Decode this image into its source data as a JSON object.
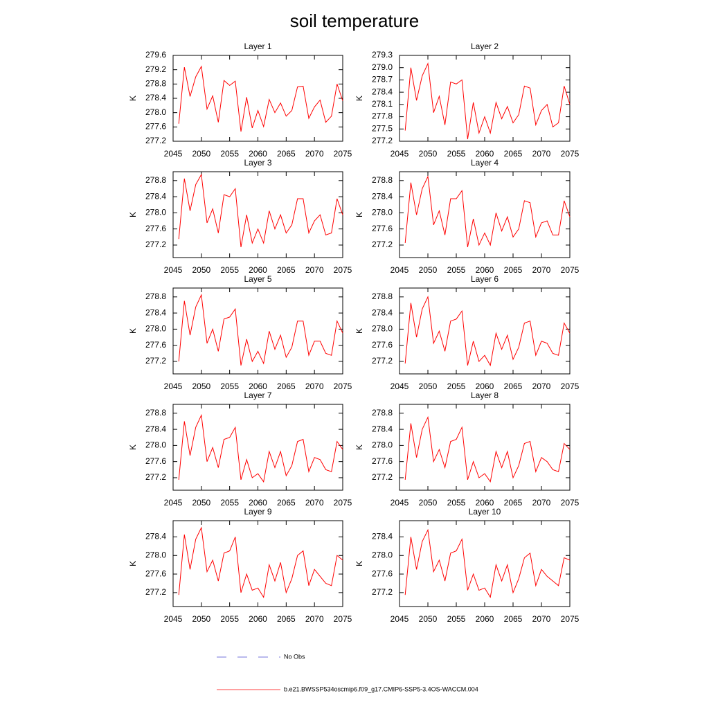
{
  "title": "soil temperature",
  "legend": [
    {
      "name": "No Obs",
      "color": "#4a4ad0",
      "style": "dashed"
    },
    {
      "name": "b.e21.BWSSP534oscmip6.f09_g17.CMIP6-SSP5-3.4OS-WACCM.004",
      "color": "#ff0000",
      "style": "solid"
    }
  ],
  "chart_data": [
    {
      "type": "line",
      "title": "Layer 1",
      "ylabel": "K",
      "x": [
        2046,
        2047,
        2048,
        2049,
        2050,
        2051,
        2052,
        2053,
        2054,
        2055,
        2056,
        2057,
        2058,
        2059,
        2060,
        2061,
        2062,
        2063,
        2064,
        2065,
        2066,
        2067,
        2068,
        2069,
        2070,
        2071,
        2072,
        2073,
        2074,
        2075
      ],
      "series": [
        {
          "color": "#ff0000",
          "values": [
            277.69,
            279.27,
            278.45,
            279.0,
            279.29,
            278.1,
            278.47,
            277.73,
            278.9,
            278.76,
            278.88,
            277.47,
            278.43,
            277.57,
            278.06,
            277.61,
            278.37,
            278.0,
            278.27,
            277.9,
            278.06,
            278.72,
            278.74,
            277.84,
            278.16,
            278.35,
            277.73,
            277.9,
            278.8,
            278.33
          ]
        }
      ],
      "xlim": [
        2045,
        2075
      ],
      "xticks": [
        2045,
        2050,
        2055,
        2060,
        2065,
        2070,
        2075
      ],
      "ylim": [
        277.2,
        279.6
      ],
      "yticks": [
        277.2,
        277.6,
        {
          "value": 278,
          "label": "278.0"
        },
        278.4,
        278.8,
        279.2,
        279.6
      ]
    },
    {
      "type": "line",
      "title": "Layer 2",
      "ylabel": "K",
      "x": [
        2046,
        2047,
        2048,
        2049,
        2050,
        2051,
        2052,
        2053,
        2054,
        2055,
        2056,
        2057,
        2058,
        2059,
        2060,
        2061,
        2062,
        2063,
        2064,
        2065,
        2066,
        2067,
        2068,
        2069,
        2070,
        2071,
        2072,
        2073,
        2074,
        2075
      ],
      "series": [
        {
          "color": "#ff0000",
          "values": [
            277.46,
            279.0,
            278.2,
            278.8,
            279.1,
            277.9,
            278.3,
            277.6,
            278.65,
            278.6,
            278.7,
            277.25,
            278.15,
            277.4,
            277.8,
            277.4,
            278.15,
            277.75,
            278.05,
            277.65,
            277.85,
            278.55,
            278.5,
            277.6,
            277.95,
            278.1,
            277.55,
            277.65,
            278.55,
            278.1
          ]
        }
      ],
      "xlim": [
        2045,
        2075
      ],
      "xticks": [
        2045,
        2050,
        2055,
        2060,
        2065,
        2070,
        2075
      ],
      "ylim": [
        277.2,
        279.3
      ],
      "yticks": [
        277.2,
        277.5,
        277.8,
        278.1,
        278.4,
        278.7,
        {
          "value": 279,
          "label": "279.0"
        },
        279.3
      ]
    },
    {
      "type": "line",
      "title": "Layer 3",
      "ylabel": "K",
      "x": [
        2046,
        2047,
        2048,
        2049,
        2050,
        2051,
        2052,
        2053,
        2054,
        2055,
        2056,
        2057,
        2058,
        2059,
        2060,
        2061,
        2062,
        2063,
        2064,
        2065,
        2066,
        2067,
        2068,
        2069,
        2070,
        2071,
        2072,
        2073,
        2074,
        2075
      ],
      "series": [
        {
          "color": "#ff0000",
          "values": [
            277.35,
            278.85,
            278.05,
            278.7,
            278.95,
            277.75,
            278.1,
            277.5,
            278.45,
            278.4,
            278.6,
            277.15,
            277.95,
            277.25,
            277.6,
            277.25,
            278.05,
            277.6,
            277.95,
            277.5,
            277.7,
            278.35,
            278.35,
            277.5,
            277.8,
            277.95,
            277.45,
            277.5,
            278.35,
            277.95
          ]
        }
      ],
      "xlim": [
        2045,
        2075
      ],
      "xticks": [
        2045,
        2050,
        2055,
        2060,
        2065,
        2070,
        2075
      ],
      "ylim": [
        276.89,
        279.02
      ],
      "yticks": [
        277.2,
        277.6,
        {
          "value": 278,
          "label": "278.0"
        },
        278.4,
        278.8
      ]
    },
    {
      "type": "line",
      "title": "Layer 4",
      "ylabel": "K",
      "x": [
        2046,
        2047,
        2048,
        2049,
        2050,
        2051,
        2052,
        2053,
        2054,
        2055,
        2056,
        2057,
        2058,
        2059,
        2060,
        2061,
        2062,
        2063,
        2064,
        2065,
        2066,
        2067,
        2068,
        2069,
        2070,
        2071,
        2072,
        2073,
        2074,
        2075
      ],
      "series": [
        {
          "color": "#ff0000",
          "values": [
            277.25,
            278.75,
            277.95,
            278.6,
            278.9,
            277.7,
            278.05,
            277.45,
            278.35,
            278.35,
            278.55,
            277.15,
            277.85,
            277.2,
            277.5,
            277.2,
            278.0,
            277.55,
            277.9,
            277.4,
            277.6,
            278.3,
            278.25,
            277.4,
            277.75,
            277.8,
            277.45,
            277.45,
            278.3,
            277.9
          ]
        }
      ],
      "xlim": [
        2045,
        2075
      ],
      "xticks": [
        2045,
        2050,
        2055,
        2060,
        2065,
        2070,
        2075
      ],
      "ylim": [
        276.89,
        279.02
      ],
      "yticks": [
        277.2,
        277.6,
        {
          "value": 278,
          "label": "278.0"
        },
        278.4,
        278.8
      ]
    },
    {
      "type": "line",
      "title": "Layer 5",
      "ylabel": "K",
      "x": [
        2046,
        2047,
        2048,
        2049,
        2050,
        2051,
        2052,
        2053,
        2054,
        2055,
        2056,
        2057,
        2058,
        2059,
        2060,
        2061,
        2062,
        2063,
        2064,
        2065,
        2066,
        2067,
        2068,
        2069,
        2070,
        2071,
        2072,
        2073,
        2074,
        2075
      ],
      "series": [
        {
          "color": "#ff0000",
          "values": [
            277.2,
            278.7,
            277.85,
            278.55,
            278.85,
            277.65,
            278.0,
            277.45,
            278.25,
            278.3,
            278.5,
            277.1,
            277.75,
            277.2,
            277.45,
            277.15,
            277.95,
            277.5,
            277.85,
            277.3,
            277.55,
            278.2,
            278.2,
            277.35,
            277.7,
            277.7,
            277.4,
            277.35,
            278.2,
            277.9
          ]
        }
      ],
      "xlim": [
        2045,
        2075
      ],
      "xticks": [
        2045,
        2050,
        2055,
        2060,
        2065,
        2070,
        2075
      ],
      "ylim": [
        276.89,
        279.02
      ],
      "yticks": [
        277.2,
        277.6,
        {
          "value": 278,
          "label": "278.0"
        },
        278.4,
        278.8
      ]
    },
    {
      "type": "line",
      "title": "Layer 6",
      "ylabel": "K",
      "x": [
        2046,
        2047,
        2048,
        2049,
        2050,
        2051,
        2052,
        2053,
        2054,
        2055,
        2056,
        2057,
        2058,
        2059,
        2060,
        2061,
        2062,
        2063,
        2064,
        2065,
        2066,
        2067,
        2068,
        2069,
        2070,
        2071,
        2072,
        2073,
        2074,
        2075
      ],
      "series": [
        {
          "color": "#ff0000",
          "values": [
            277.15,
            278.65,
            277.8,
            278.5,
            278.8,
            277.65,
            277.95,
            277.45,
            278.2,
            278.25,
            278.45,
            277.1,
            277.7,
            277.2,
            277.35,
            277.1,
            277.9,
            277.5,
            277.85,
            277.25,
            277.55,
            278.15,
            278.2,
            277.35,
            277.7,
            277.65,
            277.4,
            277.35,
            278.15,
            277.9
          ]
        }
      ],
      "xlim": [
        2045,
        2075
      ],
      "xticks": [
        2045,
        2050,
        2055,
        2060,
        2065,
        2070,
        2075
      ],
      "ylim": [
        276.89,
        279.02
      ],
      "yticks": [
        277.2,
        277.6,
        {
          "value": 278,
          "label": "278.0"
        },
        278.4,
        278.8
      ]
    },
    {
      "type": "line",
      "title": "Layer 7",
      "ylabel": "K",
      "x": [
        2046,
        2047,
        2048,
        2049,
        2050,
        2051,
        2052,
        2053,
        2054,
        2055,
        2056,
        2057,
        2058,
        2059,
        2060,
        2061,
        2062,
        2063,
        2064,
        2065,
        2066,
        2067,
        2068,
        2069,
        2070,
        2071,
        2072,
        2073,
        2074,
        2075
      ],
      "series": [
        {
          "color": "#ff0000",
          "values": [
            277.15,
            278.6,
            277.75,
            278.45,
            278.75,
            277.6,
            277.95,
            277.45,
            278.15,
            278.2,
            278.45,
            277.15,
            277.65,
            277.2,
            277.3,
            277.1,
            277.85,
            277.45,
            277.85,
            277.25,
            277.5,
            278.1,
            278.15,
            277.35,
            277.7,
            277.65,
            277.4,
            277.35,
            278.1,
            277.9
          ]
        }
      ],
      "xlim": [
        2045,
        2075
      ],
      "xticks": [
        2045,
        2050,
        2055,
        2060,
        2065,
        2070,
        2075
      ],
      "ylim": [
        276.89,
        279.02
      ],
      "yticks": [
        277.2,
        277.6,
        {
          "value": 278,
          "label": "278.0"
        },
        278.4,
        278.8
      ]
    },
    {
      "type": "line",
      "title": "Layer 8",
      "ylabel": "K",
      "x": [
        2046,
        2047,
        2048,
        2049,
        2050,
        2051,
        2052,
        2053,
        2054,
        2055,
        2056,
        2057,
        2058,
        2059,
        2060,
        2061,
        2062,
        2063,
        2064,
        2065,
        2066,
        2067,
        2068,
        2069,
        2070,
        2071,
        2072,
        2073,
        2074,
        2075
      ],
      "series": [
        {
          "color": "#ff0000",
          "values": [
            277.15,
            278.55,
            277.7,
            278.4,
            278.7,
            277.6,
            277.9,
            277.45,
            278.1,
            278.15,
            278.45,
            277.15,
            277.6,
            277.2,
            277.3,
            277.1,
            277.85,
            277.45,
            277.85,
            277.2,
            277.5,
            278.05,
            278.1,
            277.35,
            277.7,
            277.6,
            277.4,
            277.35,
            278.05,
            277.9
          ]
        }
      ],
      "xlim": [
        2045,
        2075
      ],
      "xticks": [
        2045,
        2050,
        2055,
        2060,
        2065,
        2070,
        2075
      ],
      "ylim": [
        276.89,
        279.02
      ],
      "yticks": [
        277.2,
        277.6,
        {
          "value": 278,
          "label": "278.0"
        },
        278.4,
        278.8
      ]
    },
    {
      "type": "line",
      "title": "Layer 9",
      "ylabel": "K",
      "x": [
        2046,
        2047,
        2048,
        2049,
        2050,
        2051,
        2052,
        2053,
        2054,
        2055,
        2056,
        2057,
        2058,
        2059,
        2060,
        2061,
        2062,
        2063,
        2064,
        2065,
        2066,
        2067,
        2068,
        2069,
        2070,
        2071,
        2072,
        2073,
        2074,
        2075
      ],
      "series": [
        {
          "color": "#ff0000",
          "values": [
            277.15,
            278.45,
            277.7,
            278.35,
            278.6,
            277.65,
            277.9,
            277.45,
            278.05,
            278.1,
            278.4,
            277.2,
            277.6,
            277.25,
            277.3,
            277.1,
            277.8,
            277.45,
            277.85,
            277.2,
            277.5,
            278.0,
            278.1,
            277.35,
            277.7,
            277.55,
            277.4,
            277.35,
            278.0,
            277.9
          ]
        }
      ],
      "xlim": [
        2045,
        2075
      ],
      "xticks": [
        2045,
        2050,
        2055,
        2060,
        2065,
        2070,
        2075
      ],
      "ylim": [
        276.9,
        278.75
      ],
      "yticks": [
        277.2,
        277.6,
        {
          "value": 278,
          "label": "278.0"
        },
        278.4
      ]
    },
    {
      "type": "line",
      "title": "Layer 10",
      "ylabel": "K",
      "x": [
        2046,
        2047,
        2048,
        2049,
        2050,
        2051,
        2052,
        2053,
        2054,
        2055,
        2056,
        2057,
        2058,
        2059,
        2060,
        2061,
        2062,
        2063,
        2064,
        2065,
        2066,
        2067,
        2068,
        2069,
        2070,
        2071,
        2072,
        2073,
        2074,
        2075
      ],
      "series": [
        {
          "color": "#ff0000",
          "values": [
            277.15,
            278.4,
            277.7,
            278.3,
            278.55,
            277.65,
            277.9,
            277.45,
            278.05,
            278.1,
            278.35,
            277.25,
            277.6,
            277.25,
            277.3,
            277.1,
            277.8,
            277.45,
            277.8,
            277.2,
            277.5,
            277.95,
            278.05,
            277.35,
            277.7,
            277.55,
            277.45,
            277.35,
            277.95,
            277.9
          ]
        }
      ],
      "xlim": [
        2045,
        2075
      ],
      "xticks": [
        2045,
        2050,
        2055,
        2060,
        2065,
        2070,
        2075
      ],
      "ylim": [
        276.9,
        278.75
      ],
      "yticks": [
        277.2,
        277.6,
        {
          "value": 278,
          "label": "278.0"
        },
        278.4
      ]
    }
  ]
}
